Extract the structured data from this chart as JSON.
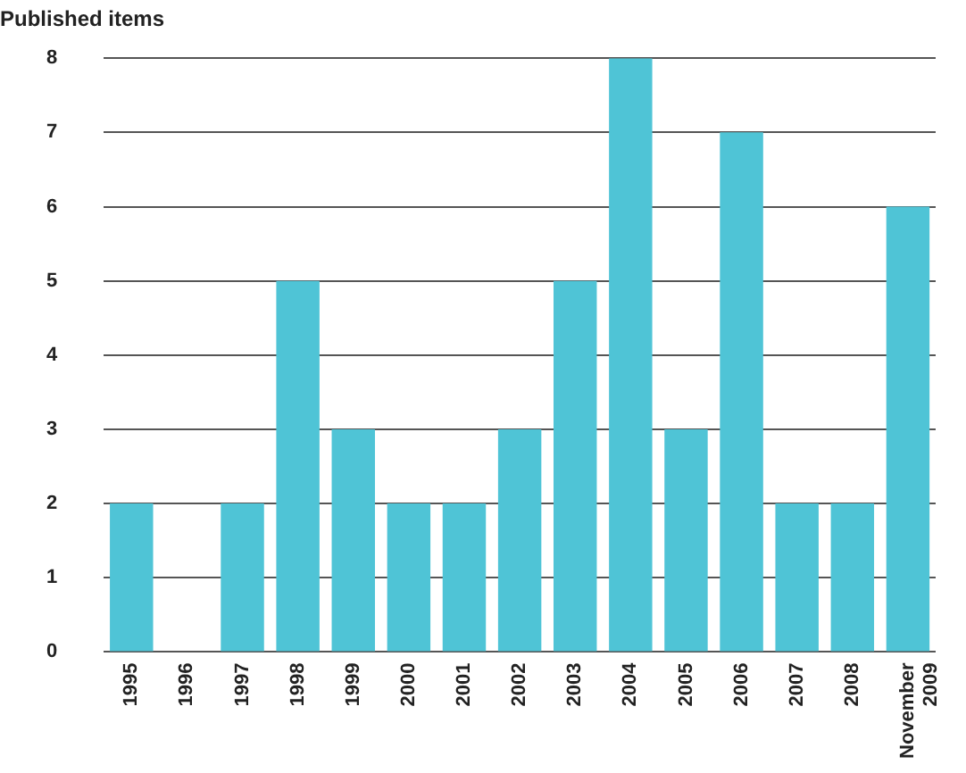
{
  "chart_data": {
    "type": "bar",
    "ylabel": "Published items",
    "categories": [
      "1995",
      "1996",
      "1997",
      "1998",
      "1999",
      "2000",
      "2001",
      "2002",
      "2003",
      "2004",
      "2005",
      "2006",
      "2007",
      "2008",
      "November 2009"
    ],
    "values": [
      2,
      0,
      2,
      5,
      3,
      2,
      2,
      3,
      5,
      8,
      3,
      7,
      2,
      2,
      6
    ],
    "color": "#4fc4d6",
    "ylim": [
      0,
      8
    ],
    "yticks": [
      0,
      1,
      2,
      3,
      4,
      5,
      6,
      7,
      8
    ],
    "grid": "y"
  }
}
